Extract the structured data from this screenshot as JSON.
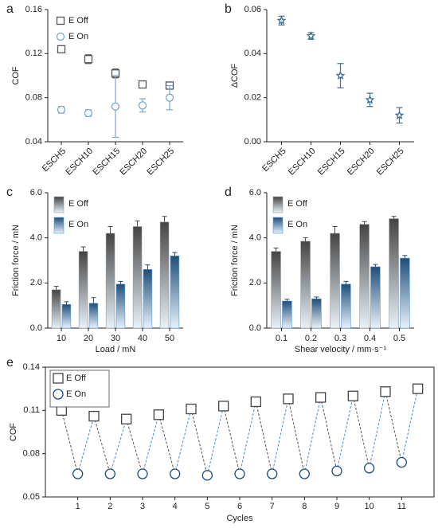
{
  "chart_data": [
    {
      "type": "scatter",
      "label": "a",
      "categories": [
        "ESCH5",
        "ESCH10",
        "ESCH15",
        "ESCH20",
        "ESCH25"
      ],
      "y_label": "COF",
      "ylim": [
        0.04,
        0.16
      ],
      "yticks": [
        0.04,
        0.08,
        0.12,
        0.16
      ],
      "legend": "upper left",
      "series": [
        {
          "name": "E Off",
          "color": "#555555",
          "marker": "square",
          "values": [
            0.124,
            0.115,
            0.102,
            0.092,
            0.091
          ],
          "errors": [
            0.003,
            0.004,
            0.004,
            0.002,
            0.002
          ]
        },
        {
          "name": "E On",
          "color": "#7aa6cf",
          "marker": "circle",
          "values": [
            0.069,
            0.066,
            0.072,
            0.073,
            0.08
          ],
          "errors": [
            0.003,
            0.003,
            0.028,
            0.006,
            0.011
          ]
        }
      ]
    },
    {
      "type": "scatter",
      "label": "b",
      "categories": [
        "ESCH5",
        "ESCH10",
        "ESCH15",
        "ESCH20",
        "ESCH25"
      ],
      "y_label": "ΔCOF",
      "ylim": [
        0,
        0.06
      ],
      "yticks": [
        {
          "value": 0,
          "label": "0.00"
        },
        0.02,
        0.04,
        0.06
      ],
      "series": [
        {
          "color": "#3d6f99",
          "marker": "star",
          "values": [
            0.055,
            0.048,
            0.03,
            0.019,
            0.012
          ],
          "errors": [
            0.002,
            0.0015,
            0.0055,
            0.003,
            0.0035
          ]
        }
      ]
    },
    {
      "type": "bar",
      "label": "c",
      "categories": [
        "10",
        "20",
        "30",
        "40",
        "50"
      ],
      "x_label": "Load / mN",
      "y_label": "Friction force / mN",
      "ylim": [
        0,
        6
      ],
      "yticks": [
        {
          "value": 0,
          "label": "0.0"
        },
        {
          "value": 2,
          "label": "2.0"
        },
        {
          "value": 4,
          "label": "4.0"
        },
        {
          "value": 6,
          "label": "6.0"
        }
      ],
      "legend": "upper left",
      "series": [
        {
          "name": "E Off",
          "color": "#444444",
          "values": [
            1.7,
            3.4,
            4.2,
            4.5,
            4.7
          ],
          "errors": [
            0.15,
            0.2,
            0.3,
            0.25,
            0.25
          ]
        },
        {
          "name": "E On",
          "color": "#1f4e79",
          "values": [
            1.05,
            1.1,
            1.95,
            2.6,
            3.2
          ],
          "errors": [
            0.12,
            0.25,
            0.12,
            0.2,
            0.15
          ]
        }
      ]
    },
    {
      "type": "bar",
      "label": "d",
      "categories": [
        "0.1",
        "0.2",
        "0.3",
        "0.4",
        "0.5"
      ],
      "x_label": "Shear velocity / mm·s⁻¹",
      "y_label": "Friction force / mN",
      "ylim": [
        0,
        6
      ],
      "yticks": [
        {
          "value": 0,
          "label": "0.0"
        },
        {
          "value": 2,
          "label": "2.0"
        },
        {
          "value": 4,
          "label": "4.0"
        },
        {
          "value": 6,
          "label": "6.0"
        }
      ],
      "legend": "upper left",
      "series": [
        {
          "name": "E Off",
          "color": "#444444",
          "values": [
            3.4,
            3.85,
            4.2,
            4.6,
            4.85
          ],
          "errors": [
            0.15,
            0.15,
            0.3,
            0.12,
            0.1
          ]
        },
        {
          "name": "E On",
          "color": "#1f4e79",
          "values": [
            1.2,
            1.3,
            1.95,
            2.72,
            3.1
          ],
          "errors": [
            0.08,
            0.08,
            0.12,
            0.1,
            0.12
          ]
        }
      ]
    },
    {
      "type": "line",
      "label": "e",
      "x_label": "Cycles",
      "y_label": "COF",
      "xlim": [
        0,
        12
      ],
      "xticks": [
        1,
        2,
        3,
        4,
        5,
        6,
        7,
        8,
        9,
        10,
        11
      ],
      "ylim": [
        0.05,
        0.14
      ],
      "yticks": [
        0.05,
        0.08,
        0.11,
        0.14
      ],
      "legend": "upper left",
      "series": [
        {
          "name": "E Off",
          "color": "#444444",
          "marker": "square",
          "x": [
            0.5,
            1.5,
            2.5,
            3.5,
            4.5,
            5.5,
            6.5,
            7.5,
            8.5,
            9.5,
            10.5,
            11.5
          ],
          "values": [
            0.11,
            0.106,
            0.104,
            0.107,
            0.111,
            0.113,
            0.116,
            0.118,
            0.119,
            0.12,
            0.123,
            0.125
          ]
        },
        {
          "name": "E On",
          "color": "#1a4a78",
          "marker": "circle",
          "x": [
            1,
            2,
            3,
            4,
            5,
            6,
            7,
            8,
            9,
            10,
            11
          ],
          "values": [
            0.066,
            0.066,
            0.066,
            0.066,
            0.065,
            0.066,
            0.066,
            0.066,
            0.068,
            0.07,
            0.074
          ]
        }
      ]
    }
  ]
}
